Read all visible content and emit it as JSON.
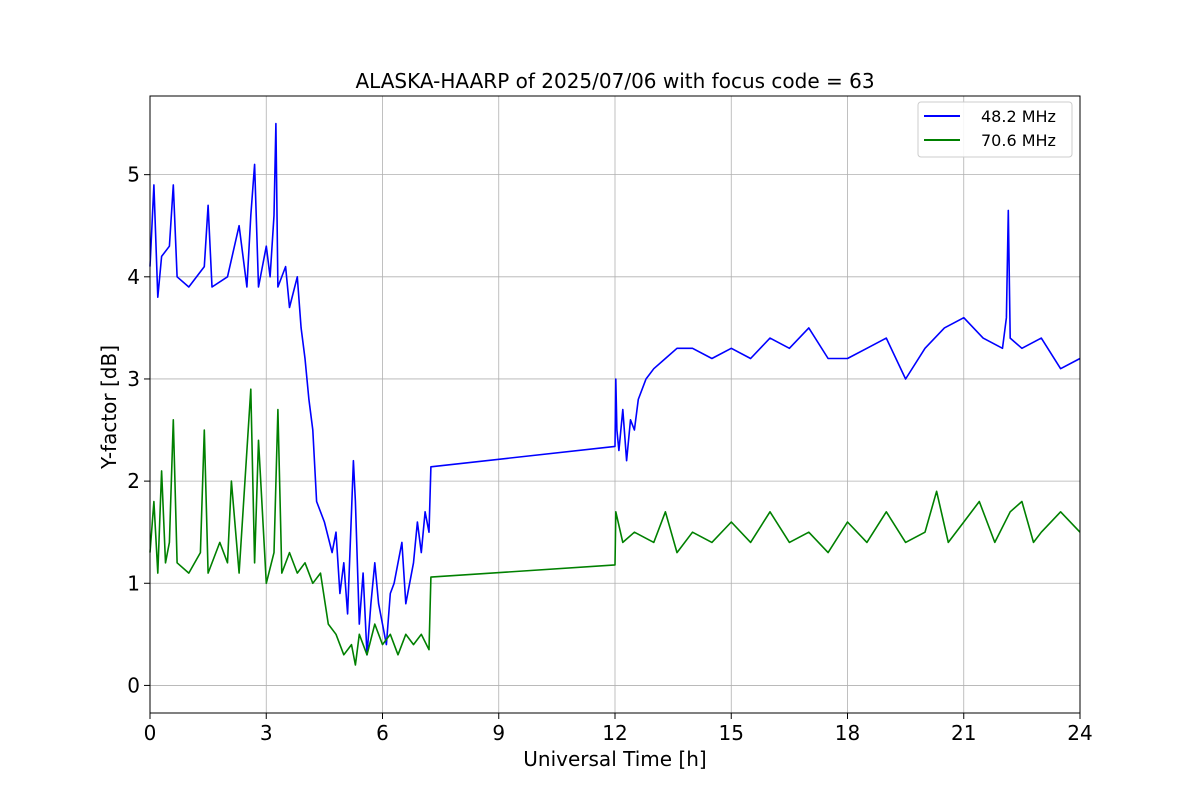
{
  "chart_data": {
    "type": "line",
    "title": "ALASKA-HAARP of 2025/07/06 with focus code = 63",
    "xlabel": "Universal Time [h]",
    "ylabel": "Y-factor [dB]",
    "xlim": [
      0,
      24
    ],
    "ylim": [
      -0.27,
      5.77
    ],
    "xticks": [
      "0",
      "3",
      "6",
      "9",
      "12",
      "15",
      "18",
      "21",
      "24"
    ],
    "yticks": [
      "0",
      "1",
      "2",
      "3",
      "4",
      "5"
    ],
    "grid": true,
    "legend_position": "top-right",
    "x_unit": "h",
    "series": [
      {
        "name": "48.2 MHz",
        "color": "#0000ff",
        "points": [
          [
            0.0,
            4.1
          ],
          [
            0.1,
            4.9
          ],
          [
            0.2,
            3.8
          ],
          [
            0.3,
            4.2
          ],
          [
            0.5,
            4.3
          ],
          [
            0.6,
            4.9
          ],
          [
            0.7,
            4.0
          ],
          [
            1.0,
            3.9
          ],
          [
            1.4,
            4.1
          ],
          [
            1.5,
            4.7
          ],
          [
            1.6,
            3.9
          ],
          [
            2.0,
            4.0
          ],
          [
            2.3,
            4.5
          ],
          [
            2.5,
            3.9
          ],
          [
            2.6,
            4.6
          ],
          [
            2.7,
            5.1
          ],
          [
            2.8,
            3.9
          ],
          [
            3.0,
            4.3
          ],
          [
            3.1,
            4.0
          ],
          [
            3.2,
            4.6
          ],
          [
            3.25,
            5.5
          ],
          [
            3.3,
            3.9
          ],
          [
            3.5,
            4.1
          ],
          [
            3.6,
            3.7
          ],
          [
            3.8,
            4.0
          ],
          [
            3.9,
            3.5
          ],
          [
            4.0,
            3.2
          ],
          [
            4.1,
            2.8
          ],
          [
            4.2,
            2.5
          ],
          [
            4.3,
            1.8
          ],
          [
            4.5,
            1.6
          ],
          [
            4.7,
            1.3
          ],
          [
            4.8,
            1.5
          ],
          [
            4.9,
            0.9
          ],
          [
            5.0,
            1.2
          ],
          [
            5.1,
            0.7
          ],
          [
            5.2,
            1.7
          ],
          [
            5.25,
            2.2
          ],
          [
            5.3,
            1.8
          ],
          [
            5.4,
            0.6
          ],
          [
            5.5,
            1.1
          ],
          [
            5.6,
            0.3
          ],
          [
            5.7,
            0.8
          ],
          [
            5.8,
            1.2
          ],
          [
            5.9,
            0.8
          ],
          [
            6.0,
            0.6
          ],
          [
            6.1,
            0.4
          ],
          [
            6.2,
            0.9
          ],
          [
            6.3,
            1.0
          ],
          [
            6.5,
            1.4
          ],
          [
            6.6,
            0.8
          ],
          [
            6.8,
            1.2
          ],
          [
            6.9,
            1.6
          ],
          [
            7.0,
            1.3
          ],
          [
            7.1,
            1.7
          ],
          [
            7.2,
            1.5
          ],
          [
            7.25,
            2.14
          ],
          [
            12.0,
            2.34
          ],
          [
            12.02,
            3.0
          ],
          [
            12.05,
            2.5
          ],
          [
            12.1,
            2.3
          ],
          [
            12.2,
            2.7
          ],
          [
            12.3,
            2.2
          ],
          [
            12.4,
            2.6
          ],
          [
            12.5,
            2.5
          ],
          [
            12.6,
            2.8
          ],
          [
            12.8,
            3.0
          ],
          [
            13.0,
            3.1
          ],
          [
            13.3,
            3.2
          ],
          [
            13.6,
            3.3
          ],
          [
            14.0,
            3.3
          ],
          [
            14.5,
            3.2
          ],
          [
            15.0,
            3.3
          ],
          [
            15.5,
            3.2
          ],
          [
            16.0,
            3.4
          ],
          [
            16.5,
            3.3
          ],
          [
            17.0,
            3.5
          ],
          [
            17.5,
            3.2
          ],
          [
            18.0,
            3.2
          ],
          [
            18.5,
            3.3
          ],
          [
            19.0,
            3.4
          ],
          [
            19.5,
            3.0
          ],
          [
            20.0,
            3.3
          ],
          [
            20.5,
            3.5
          ],
          [
            21.0,
            3.6
          ],
          [
            21.5,
            3.4
          ],
          [
            22.0,
            3.3
          ],
          [
            22.1,
            3.6
          ],
          [
            22.15,
            4.65
          ],
          [
            22.2,
            3.4
          ],
          [
            22.5,
            3.3
          ],
          [
            23.0,
            3.4
          ],
          [
            23.5,
            3.1
          ],
          [
            24.0,
            3.2
          ]
        ]
      },
      {
        "name": "70.6 MHz",
        "color": "#008000",
        "points": [
          [
            0.0,
            1.3
          ],
          [
            0.1,
            1.8
          ],
          [
            0.2,
            1.1
          ],
          [
            0.3,
            2.1
          ],
          [
            0.4,
            1.2
          ],
          [
            0.5,
            1.4
          ],
          [
            0.6,
            2.6
          ],
          [
            0.7,
            1.2
          ],
          [
            1.0,
            1.1
          ],
          [
            1.3,
            1.3
          ],
          [
            1.4,
            2.5
          ],
          [
            1.5,
            1.1
          ],
          [
            1.8,
            1.4
          ],
          [
            2.0,
            1.2
          ],
          [
            2.1,
            2.0
          ],
          [
            2.3,
            1.1
          ],
          [
            2.6,
            2.9
          ],
          [
            2.7,
            1.2
          ],
          [
            2.8,
            2.4
          ],
          [
            3.0,
            1.0
          ],
          [
            3.2,
            1.3
          ],
          [
            3.3,
            2.7
          ],
          [
            3.4,
            1.1
          ],
          [
            3.6,
            1.3
          ],
          [
            3.8,
            1.1
          ],
          [
            4.0,
            1.2
          ],
          [
            4.2,
            1.0
          ],
          [
            4.4,
            1.1
          ],
          [
            4.6,
            0.6
          ],
          [
            4.8,
            0.5
          ],
          [
            5.0,
            0.3
          ],
          [
            5.2,
            0.4
          ],
          [
            5.3,
            0.2
          ],
          [
            5.4,
            0.5
          ],
          [
            5.6,
            0.3
          ],
          [
            5.8,
            0.6
          ],
          [
            6.0,
            0.4
          ],
          [
            6.2,
            0.5
          ],
          [
            6.4,
            0.3
          ],
          [
            6.6,
            0.5
          ],
          [
            6.8,
            0.4
          ],
          [
            7.0,
            0.5
          ],
          [
            7.2,
            0.35
          ],
          [
            7.25,
            1.06
          ],
          [
            12.0,
            1.18
          ],
          [
            12.02,
            1.7
          ],
          [
            12.2,
            1.4
          ],
          [
            12.5,
            1.5
          ],
          [
            13.0,
            1.4
          ],
          [
            13.3,
            1.7
          ],
          [
            13.6,
            1.3
          ],
          [
            14.0,
            1.5
          ],
          [
            14.5,
            1.4
          ],
          [
            15.0,
            1.6
          ],
          [
            15.5,
            1.4
          ],
          [
            16.0,
            1.7
          ],
          [
            16.5,
            1.4
          ],
          [
            17.0,
            1.5
          ],
          [
            17.5,
            1.3
          ],
          [
            18.0,
            1.6
          ],
          [
            18.5,
            1.4
          ],
          [
            19.0,
            1.7
          ],
          [
            19.5,
            1.4
          ],
          [
            20.0,
            1.5
          ],
          [
            20.3,
            1.9
          ],
          [
            20.6,
            1.4
          ],
          [
            21.0,
            1.6
          ],
          [
            21.4,
            1.8
          ],
          [
            21.8,
            1.4
          ],
          [
            22.2,
            1.7
          ],
          [
            22.5,
            1.8
          ],
          [
            22.8,
            1.4
          ],
          [
            23.0,
            1.5
          ],
          [
            23.5,
            1.7
          ],
          [
            24.0,
            1.5
          ]
        ]
      }
    ]
  }
}
